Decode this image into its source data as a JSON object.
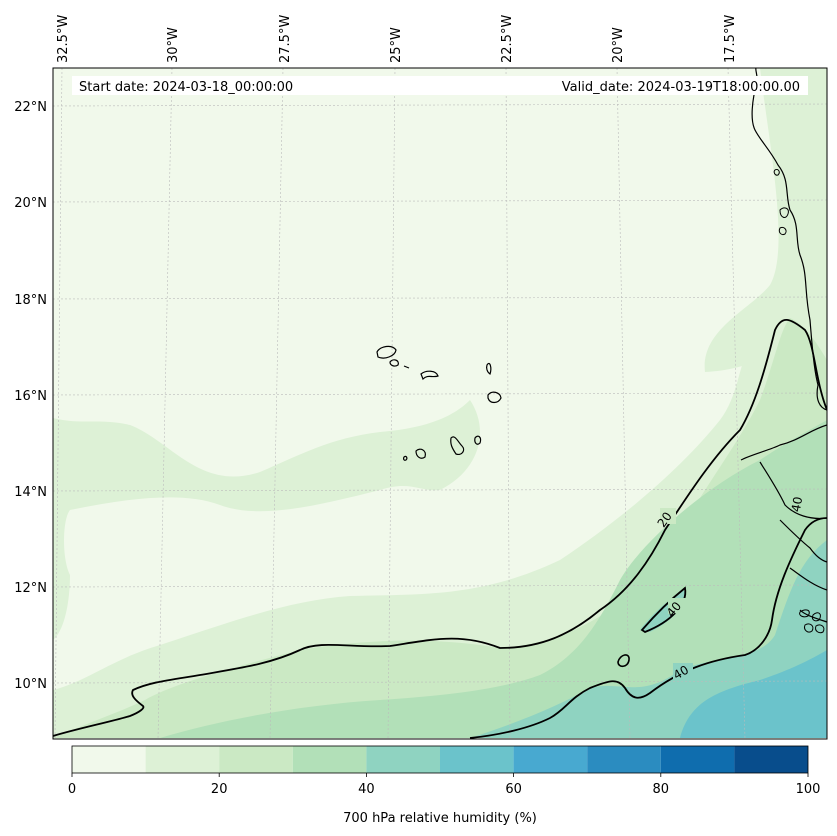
{
  "map": {
    "title_start": "Start date: 2024-03-18_00:00:00",
    "title_valid": "Valid_date: 2024-03-19T18:00:00.00",
    "lon_labels": [
      "32.5°W",
      "30°W",
      "27.5°W",
      "25°W",
      "22.5°W",
      "20°W",
      "17.5°W"
    ],
    "lat_labels": [
      "22°N",
      "20°N",
      "18°N",
      "16°N",
      "14°N",
      "12°N",
      "10°N"
    ],
    "contour_labels": [
      "20",
      "40",
      "40",
      "40"
    ],
    "colors": {
      "band_0_10": "#f1f9eb",
      "band_10_20": "#ddf1d6",
      "band_20_30": "#cbe9c4",
      "band_30_40": "#b2e0b8",
      "band_40_50": "#8fd3c1",
      "band_50_60": "#6bc3cb",
      "coast": "#000000",
      "grid": "#bbbbbb"
    }
  },
  "colorbar": {
    "label": "700 hPa relative humidity (%)",
    "ticks": [
      "0",
      "20",
      "40",
      "60",
      "80",
      "100"
    ],
    "tick_values": [
      0,
      20,
      40,
      60,
      80,
      100
    ],
    "levels": [
      0,
      10,
      20,
      30,
      40,
      50,
      60,
      70,
      80,
      90,
      100
    ],
    "colors": [
      "#f1f9eb",
      "#ddf1d6",
      "#cbe9c4",
      "#b2e0b8",
      "#8fd3c1",
      "#6bc3cb",
      "#48a9d0",
      "#2b8cc0",
      "#0f6dae",
      "#084d8c"
    ]
  }
}
